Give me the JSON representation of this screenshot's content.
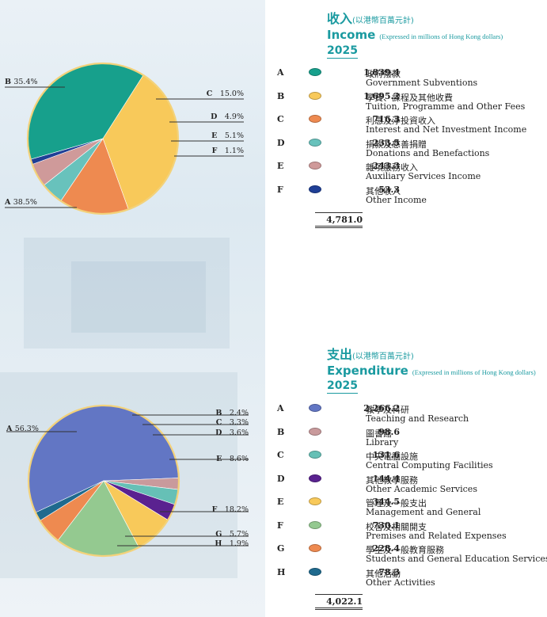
{
  "income": {
    "title_zh": "收入",
    "subtitle_zh": "(以港幣百萬元計)",
    "title_en": "Income",
    "subtitle_en": "(Expressed in millions of Hong Kong dollars)",
    "year": "2025",
    "total": "4,781.0",
    "rows": [
      {
        "letter": "A",
        "value": "1,839.4",
        "zh": "政府撥款",
        "en": "Government Subventions"
      },
      {
        "letter": "B",
        "value": "1,695.2",
        "zh": "學費、課程及其他收費",
        "en": "Tuition, Programme and Other Fees"
      },
      {
        "letter": "C",
        "value": "716.3",
        "zh": "利息及淨投資收入",
        "en": "Interest and Net Investment Income"
      },
      {
        "letter": "D",
        "value": "233.5",
        "zh": "捐款及慈善捐贈",
        "en": "Donations and Benefactions"
      },
      {
        "letter": "E",
        "value": "243.3",
        "zh": "雜項服務收入",
        "en": "Auxiliary Services Income"
      },
      {
        "letter": "F",
        "value": "53.3",
        "zh": "其他收入",
        "en": "Other Income"
      }
    ]
  },
  "expenditure": {
    "title_zh": "支出",
    "subtitle_zh": "(以港幣百萬元計)",
    "title_en": "Expenditure",
    "subtitle_en": "(Expressed in millions of Hong Kong dollars)",
    "year": "2025",
    "total": "4,022.1",
    "rows": [
      {
        "letter": "A",
        "value": "2,266.2",
        "zh": "教學及科研",
        "en": "Teaching and Research"
      },
      {
        "letter": "B",
        "value": "98.6",
        "zh": "圖書館",
        "en": "Library"
      },
      {
        "letter": "C",
        "value": "131.6",
        "zh": "中央電腦設施",
        "en": "Central Computing Facilities"
      },
      {
        "letter": "D",
        "value": "144.4",
        "zh": "其他教學服務",
        "en": "Other Academic Services"
      },
      {
        "letter": "E",
        "value": "344.5",
        "zh": "管理及一般支出",
        "en": "Management and General"
      },
      {
        "letter": "F",
        "value": "730.1",
        "zh": "校舍及相關開支",
        "en": "Premises and Related Expenses"
      },
      {
        "letter": "G",
        "value": "228.4",
        "zh": "學生及一般教育服務",
        "en": "Students and General Education Services"
      },
      {
        "letter": "H",
        "value": "78.3",
        "zh": "其他活動",
        "en": "Other Activities"
      }
    ]
  },
  "chart_data": [
    {
      "type": "pie",
      "title": "Income",
      "categories": [
        "A",
        "B",
        "C",
        "D",
        "E",
        "F"
      ],
      "values": [
        1839.4,
        1695.2,
        716.3,
        233.5,
        243.3,
        53.3
      ],
      "labels": [
        "A 38.5%",
        "B 35.4%",
        "C 15.0%",
        "D 4.9%",
        "E 5.1%",
        "F 1.1%"
      ],
      "colors": [
        "#17a08c",
        "#f8c95a",
        "#ee8a50",
        "#68c2bc",
        "#cf9a9a",
        "#1f3f96"
      ]
    },
    {
      "type": "pie",
      "title": "Expenditure",
      "categories": [
        "A",
        "B",
        "C",
        "D",
        "E",
        "F",
        "G",
        "H"
      ],
      "values": [
        2266.2,
        98.6,
        131.6,
        144.4,
        344.5,
        730.1,
        228.4,
        78.3
      ],
      "labels": [
        "A 56.3%",
        "B 2.4%",
        "C 3.3%",
        "D 3.6%",
        "E 8.6%",
        "F 18.2%",
        "G 5.7%",
        "H 1.9%"
      ],
      "colors": [
        "#6276c4",
        "#c99a9c",
        "#66c0b6",
        "#5a2290",
        "#f8c95a",
        "#94c990",
        "#ee8a50",
        "#1f6a8e"
      ]
    }
  ]
}
